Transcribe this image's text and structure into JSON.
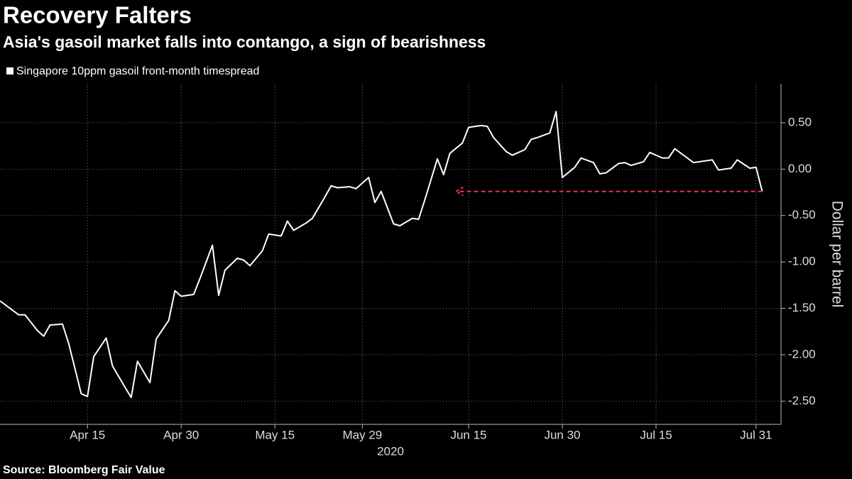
{
  "chart_data": {
    "type": "line",
    "title": "Recovery Falters",
    "subtitle": "Asia's gasoil market falls into contango, a sign of bearishness",
    "y_label": "Dollar per barrel",
    "x_label": "2020",
    "source": "Source: Bloomberg Fair Value",
    "grid": true,
    "x": [
      "2020-04-01",
      "2020-04-04",
      "2020-04-05",
      "2020-04-07",
      "2020-04-08",
      "2020-04-09",
      "2020-04-11",
      "2020-04-12",
      "2020-04-14",
      "2020-04-15",
      "2020-04-16",
      "2020-04-18",
      "2020-04-19",
      "2020-04-21",
      "2020-04-22",
      "2020-04-23",
      "2020-04-25",
      "2020-04-26",
      "2020-04-28",
      "2020-04-29",
      "2020-04-30",
      "2020-05-02",
      "2020-05-03",
      "2020-05-05",
      "2020-05-06",
      "2020-05-07",
      "2020-05-09",
      "2020-05-10",
      "2020-05-11",
      "2020-05-13",
      "2020-05-14",
      "2020-05-16",
      "2020-05-17",
      "2020-05-18",
      "2020-05-20",
      "2020-05-21",
      "2020-05-23",
      "2020-05-24",
      "2020-05-25",
      "2020-05-27",
      "2020-05-28",
      "2020-05-30",
      "2020-05-31",
      "2020-06-01",
      "2020-06-03",
      "2020-06-04",
      "2020-06-06",
      "2020-06-07",
      "2020-06-08",
      "2020-06-10",
      "2020-06-11",
      "2020-06-12",
      "2020-06-14",
      "2020-06-15",
      "2020-06-17",
      "2020-06-18",
      "2020-06-19",
      "2020-06-21",
      "2020-06-22",
      "2020-06-24",
      "2020-06-25",
      "2020-06-26",
      "2020-06-28",
      "2020-06-29",
      "2020-06-30",
      "2020-07-02",
      "2020-07-03",
      "2020-07-05",
      "2020-07-06",
      "2020-07-07",
      "2020-07-09",
      "2020-07-10",
      "2020-07-11",
      "2020-07-13",
      "2020-07-14",
      "2020-07-16",
      "2020-07-17",
      "2020-07-18",
      "2020-07-20",
      "2020-07-21",
      "2020-07-23",
      "2020-07-24",
      "2020-07-25",
      "2020-07-27",
      "2020-07-28",
      "2020-07-30",
      "2020-07-31",
      "2020-08-01"
    ],
    "series": [
      {
        "name": "Singapore 10ppm gasoil front-month timespread",
        "color": "#ffffff",
        "values": [
          -1.42,
          -1.57,
          -1.57,
          -1.74,
          -1.8,
          -1.68,
          -1.67,
          -1.88,
          -2.42,
          -2.45,
          -2.02,
          -1.82,
          -2.12,
          -2.35,
          -2.46,
          -2.07,
          -2.3,
          -1.83,
          -1.63,
          -1.31,
          -1.37,
          -1.35,
          -1.18,
          -0.82,
          -1.36,
          -1.09,
          -0.96,
          -0.98,
          -1.04,
          -0.88,
          -0.7,
          -0.72,
          -0.56,
          -0.66,
          -0.58,
          -0.53,
          -0.3,
          -0.18,
          -0.2,
          -0.19,
          -0.21,
          -0.09,
          -0.36,
          -0.24,
          -0.59,
          -0.61,
          -0.53,
          -0.54,
          -0.33,
          0.11,
          -0.06,
          0.17,
          0.28,
          0.45,
          0.47,
          0.46,
          0.34,
          0.19,
          0.15,
          0.21,
          0.32,
          0.34,
          0.39,
          0.62,
          -0.09,
          0.02,
          0.12,
          0.07,
          -0.05,
          -0.04,
          0.06,
          0.07,
          0.04,
          0.08,
          0.18,
          0.12,
          0.12,
          0.22,
          0.12,
          0.07,
          0.09,
          0.1,
          -0.01,
          0.01,
          0.1,
          0.01,
          0.02,
          -0.24
        ]
      }
    ],
    "reference_arrow": {
      "from": "2020-08-01",
      "to": "2020-06-13",
      "value": -0.24,
      "color": "#e8334a"
    },
    "xlim": [
      "2020-04-01",
      "2020-08-04"
    ],
    "xticks": [
      {
        "value": "2020-04-15",
        "label": "Apr 15"
      },
      {
        "value": "2020-04-30",
        "label": "Apr 30"
      },
      {
        "value": "2020-05-15",
        "label": "May 15"
      },
      {
        "value": "2020-05-29",
        "label": "May 29"
      },
      {
        "value": "2020-06-15",
        "label": "Jun 15"
      },
      {
        "value": "2020-06-30",
        "label": "Jun 30"
      },
      {
        "value": "2020-07-15",
        "label": "Jul 15"
      },
      {
        "value": "2020-07-31",
        "label": "Jul 31"
      }
    ],
    "ylim": [
      -2.75,
      0.92
    ],
    "yticks": [
      {
        "value": 0.5,
        "label": "0.50"
      },
      {
        "value": 0,
        "label": "0.00"
      },
      {
        "value": -0.5,
        "label": "-0.50"
      },
      {
        "value": -1,
        "label": "-1.00"
      },
      {
        "value": -1.5,
        "label": "-1.50"
      },
      {
        "value": -2,
        "label": "-2.00"
      },
      {
        "value": -2.5,
        "label": "-2.50"
      }
    ]
  }
}
